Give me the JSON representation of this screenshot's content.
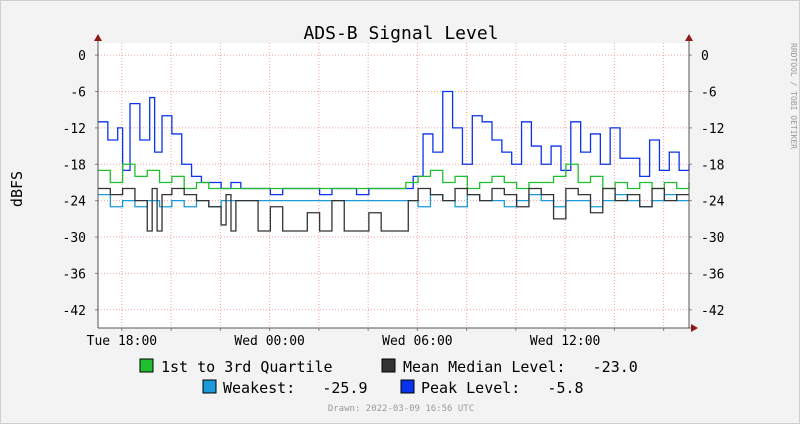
{
  "chart_data": {
    "type": "line",
    "title": "ADS-B Signal Level",
    "ylabel": "dBFS",
    "side_credit": "RRDTOOL / TOBI OETIKER",
    "ylim": [
      -45,
      2
    ],
    "yticks": [
      0,
      -6,
      -12,
      -18,
      -24,
      -30,
      -36,
      -42
    ],
    "x_hours": [
      0,
      24
    ],
    "xticks": [
      {
        "label": "Tue 18:00",
        "hour": 0.97
      },
      {
        "label": "Wed 00:00",
        "hour": 6.97
      },
      {
        "label": "Wed 06:00",
        "hour": 12.97
      },
      {
        "label": "Wed 12:00",
        "hour": 18.97
      }
    ],
    "minor_x_hours": [
      0.97,
      2.97,
      4.97,
      6.97,
      8.97,
      10.97,
      12.97,
      14.97,
      16.97,
      18.97,
      20.97,
      22.97
    ],
    "grid": true,
    "legend": [
      {
        "label": "1st to 3rd Quartile",
        "color": "#1fbf2f",
        "value": ""
      },
      {
        "label": "Mean Median Level:",
        "color": "#333333",
        "value": "-23.0"
      },
      {
        "label": "Weakest:",
        "color": "#1a9ad8",
        "value": "-25.9"
      },
      {
        "label": "Peak Level:",
        "color": "#0a33ee",
        "value": "-5.8"
      }
    ],
    "footer": "Drawn: 2022-03-09 16:56 UTC",
    "series": [
      {
        "name": "Peak Level",
        "color": "#0a33ee",
        "x": [
          0.0,
          0.4,
          0.8,
          1.0,
          1.3,
          1.7,
          2.1,
          2.3,
          2.6,
          3.0,
          3.4,
          3.8,
          4.2,
          4.6,
          5.0,
          5.4,
          5.8,
          6.2,
          6.6,
          7.0,
          7.5,
          8.0,
          8.5,
          9.0,
          9.5,
          10.0,
          10.5,
          11.0,
          11.5,
          12.0,
          12.5,
          12.8,
          13.2,
          13.6,
          14.0,
          14.4,
          14.8,
          15.2,
          15.6,
          16.0,
          16.4,
          16.8,
          17.2,
          17.6,
          18.0,
          18.4,
          18.8,
          19.2,
          19.6,
          20.0,
          20.4,
          20.8,
          21.2,
          21.6,
          22.0,
          22.4,
          22.8,
          23.2,
          23.6,
          24.0
        ],
        "y": [
          -11,
          -14,
          -12,
          -19,
          -8,
          -14,
          -7,
          -16,
          -10,
          -13,
          -18,
          -20,
          -21,
          -21,
          -22,
          -21,
          -22,
          -22,
          -22,
          -23,
          -22,
          -22,
          -22,
          -23,
          -22,
          -22,
          -23,
          -22,
          -22,
          -22,
          -22,
          -20,
          -13,
          -16,
          -6,
          -12,
          -18,
          -10,
          -11,
          -14,
          -16,
          -18,
          -11,
          -15,
          -18,
          -15,
          -19,
          -11,
          -16,
          -13,
          -18,
          -12,
          -17,
          -17,
          -20,
          -14,
          -19,
          -16,
          -19,
          -18
        ]
      },
      {
        "name": "1st to 3rd Quartile",
        "color": "#1fbf2f",
        "x": [
          0.0,
          0.5,
          1.0,
          1.5,
          2.0,
          2.5,
          3.0,
          3.5,
          4.0,
          4.5,
          5.0,
          12.5,
          13.0,
          13.5,
          14.0,
          14.5,
          15.0,
          15.5,
          16.0,
          16.5,
          17.0,
          17.5,
          18.0,
          18.5,
          19.0,
          19.5,
          20.0,
          20.5,
          21.0,
          21.5,
          22.0,
          22.5,
          23.0,
          23.5,
          24.0
        ],
        "y": [
          -19,
          -21,
          -18,
          -20,
          -19,
          -21,
          -20,
          -22,
          -21,
          -22,
          -22,
          -21,
          -20,
          -19,
          -21,
          -20,
          -22,
          -21,
          -20,
          -21,
          -22,
          -21,
          -21,
          -20,
          -18,
          -21,
          -20,
          -22,
          -21,
          -22,
          -21,
          -22,
          -21,
          -22,
          -21
        ]
      },
      {
        "name": "Weakest",
        "color": "#1a9ad8",
        "x": [
          0.0,
          0.5,
          1.0,
          1.5,
          2.0,
          2.5,
          3.0,
          3.5,
          4.0,
          4.5,
          5.0,
          12.5,
          13.0,
          13.5,
          14.0,
          14.5,
          15.0,
          15.5,
          16.0,
          16.5,
          17.0,
          17.5,
          18.0,
          18.5,
          19.0,
          19.5,
          20.0,
          20.5,
          21.0,
          21.5,
          22.0,
          22.5,
          23.0,
          23.5,
          24.0
        ],
        "y": [
          -23,
          -25,
          -24,
          -25,
          -24,
          -25,
          -24,
          -25,
          -24,
          -25,
          -24,
          -24,
          -25,
          -23,
          -24,
          -25,
          -23,
          -24,
          -24,
          -25,
          -24,
          -23,
          -24,
          -25,
          -24,
          -24,
          -25,
          -24,
          -23,
          -24,
          -25,
          -24,
          -23,
          -24,
          -24
        ]
      },
      {
        "name": "Mean Median Level",
        "color": "#333333",
        "x": [
          0.0,
          0.5,
          1.0,
          1.5,
          2.0,
          2.2,
          2.4,
          2.6,
          3.0,
          3.5,
          4.0,
          4.5,
          5.0,
          5.2,
          5.4,
          5.6,
          6.0,
          6.5,
          7.0,
          7.5,
          8.0,
          8.5,
          9.0,
          9.5,
          10.0,
          10.5,
          11.0,
          11.5,
          12.0,
          12.3,
          12.6,
          13.0,
          13.5,
          14.0,
          14.5,
          15.0,
          15.5,
          16.0,
          16.5,
          17.0,
          17.5,
          18.0,
          18.5,
          19.0,
          19.5,
          20.0,
          20.5,
          21.0,
          21.5,
          22.0,
          22.5,
          23.0,
          23.5,
          24.0
        ],
        "y": [
          -22,
          -23,
          -22,
          -24,
          -29,
          -22,
          -29,
          -23,
          -22,
          -23,
          -24,
          -25,
          -28,
          -23,
          -29,
          -24,
          -24,
          -29,
          -25,
          -29,
          -29,
          -26,
          -29,
          -24,
          -29,
          -29,
          -26,
          -29,
          -29,
          -29,
          -24,
          -22,
          -23,
          -24,
          -22,
          -23,
          -24,
          -22,
          -23,
          -25,
          -22,
          -23,
          -27,
          -22,
          -23,
          -26,
          -22,
          -24,
          -23,
          -25,
          -22,
          -24,
          -23,
          -23
        ]
      }
    ]
  }
}
